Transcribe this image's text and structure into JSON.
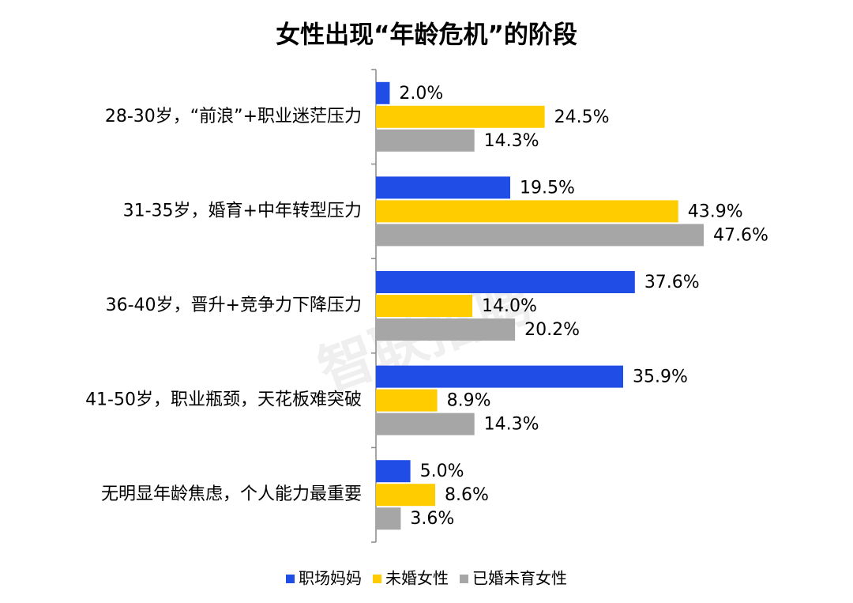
{
  "chart_data": {
    "type": "bar",
    "orientation": "horizontal",
    "title": "女性出现“年龄危机”的阶段",
    "watermark": "智联招聘",
    "categories": [
      "28-30岁，“前浪”+职业迷茫压力",
      "31-35岁，婚育+中年转型压力",
      "36-40岁，晋升+竞争力下降压力",
      "41-50岁，职业瓶颈，天花板难突破",
      "无明显年龄焦虑，个人能力最重要"
    ],
    "series": [
      {
        "name": "职场妈妈",
        "color": "#1f4de6",
        "values": [
          2.0,
          19.5,
          37.6,
          35.9,
          5.0
        ],
        "value_labels": [
          "2.0%",
          "19.5%",
          "37.6%",
          "35.9%",
          "5.0%"
        ]
      },
      {
        "name": "未婚女性",
        "color": "#ffcc00",
        "values": [
          24.5,
          43.9,
          14.0,
          8.9,
          8.6
        ],
        "value_labels": [
          "24.5%",
          "43.9%",
          "14.0%",
          "8.9%",
          "8.6%"
        ]
      },
      {
        "name": "已婚未育女性",
        "color": "#a6a6a6",
        "values": [
          14.3,
          47.6,
          20.2,
          14.3,
          3.6
        ],
        "value_labels": [
          "14.3%",
          "47.6%",
          "20.2%",
          "14.3%",
          "3.6%"
        ]
      }
    ],
    "legend": "bottom"
  }
}
